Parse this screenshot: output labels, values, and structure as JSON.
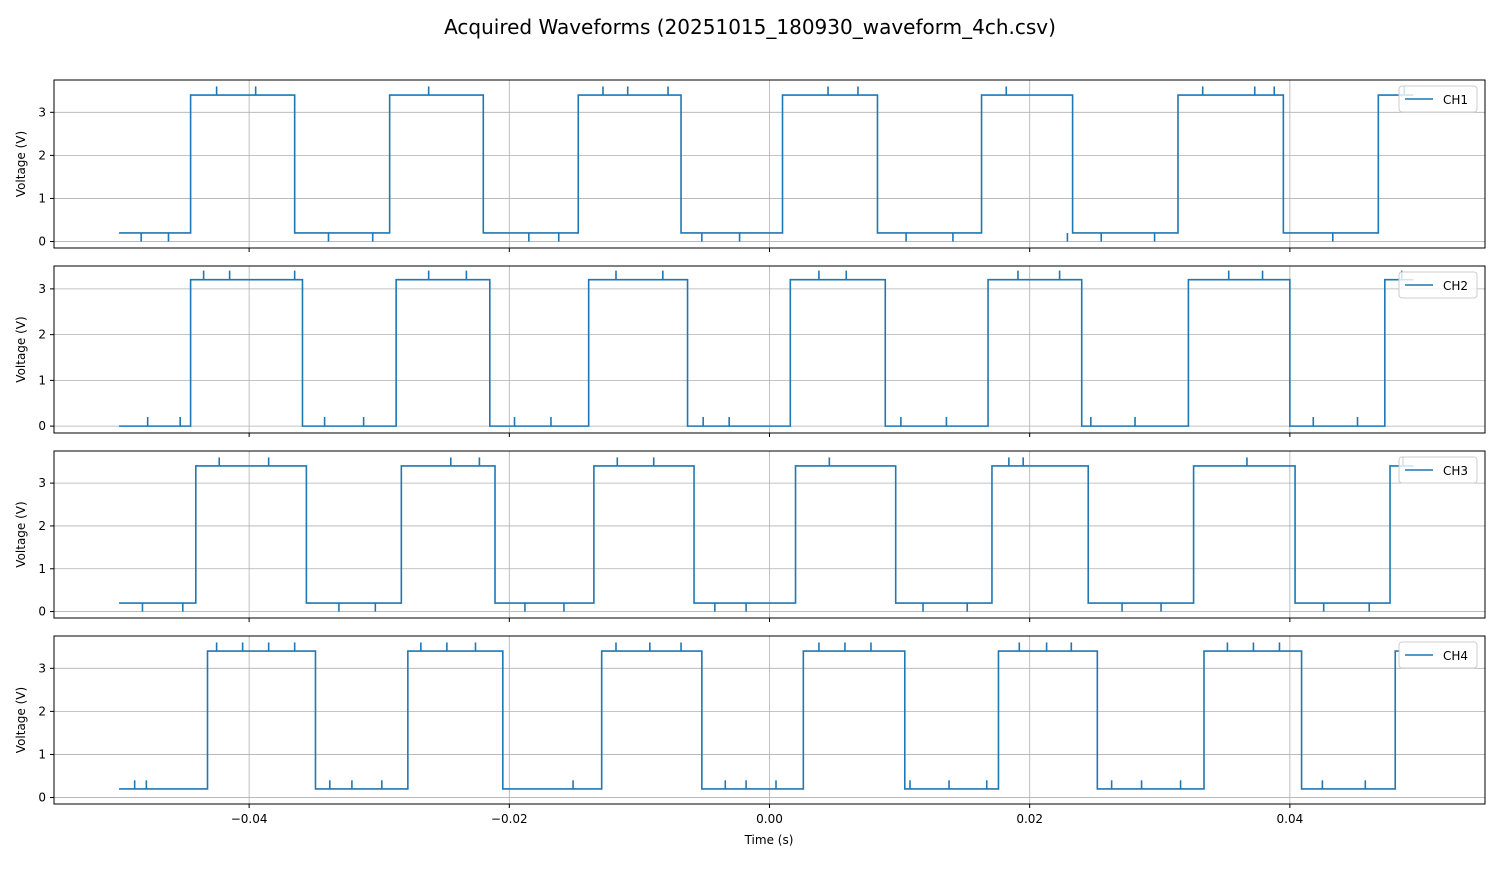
{
  "figure": {
    "title": "Acquired Waveforms (20251015_180930_waveform_4ch.csv)",
    "xlabel": "Time (s)"
  },
  "colors": {
    "series": "#1f77b4",
    "grid": "#b0b0b0",
    "axes": "#000000"
  },
  "chart_data": [
    {
      "type": "line",
      "name": "CH1",
      "ylabel": "Voltage (V)",
      "legend": {
        "entries": [
          "CH1"
        ],
        "placement": "top-right"
      },
      "grid": true,
      "xlim": [
        -0.055,
        0.055
      ],
      "ylim": [
        -0.15,
        3.75
      ],
      "xticks": [
        -0.04,
        -0.02,
        0.0,
        0.02,
        0.04
      ],
      "xtick_labels": [
        "−0.04",
        "−0.02",
        "0.00",
        "0.02",
        "0.04"
      ],
      "yticks": [
        0,
        1,
        2,
        3
      ],
      "low": 0.2,
      "high": 3.4,
      "high_glitch": 3.6,
      "low_glitch": 0.0,
      "x_start": -0.05,
      "x_end": 0.0495,
      "high_intervals": [
        [
          -0.0445,
          -0.0365
        ],
        [
          -0.0292,
          -0.022
        ],
        [
          -0.0147,
          -0.0068
        ],
        [
          0.001,
          0.0083
        ],
        [
          0.0163,
          0.0233
        ],
        [
          0.0314,
          0.0395
        ],
        [
          0.0468,
          0.0495
        ]
      ],
      "spikes_high": [
        -0.0425,
        -0.0395,
        -0.0262,
        -0.0128,
        -0.0078,
        -0.0109,
        0.0045,
        0.0068,
        0.0182,
        0.0333,
        0.0373,
        0.0388,
        0.0488
      ],
      "spikes_low": [
        -0.0483,
        -0.0462,
        -0.0339,
        -0.0305,
        -0.0185,
        -0.0162,
        -0.0052,
        -0.0023,
        0.0105,
        0.0141,
        0.0229,
        0.0255,
        0.0296,
        0.0433
      ]
    },
    {
      "type": "line",
      "name": "CH2",
      "ylabel": "Voltage (V)",
      "legend": {
        "entries": [
          "CH2"
        ],
        "placement": "top-right"
      },
      "grid": true,
      "xlim": [
        -0.055,
        0.055
      ],
      "ylim": [
        -0.15,
        3.5
      ],
      "xticks": [
        -0.04,
        -0.02,
        0.0,
        0.02,
        0.04
      ],
      "xtick_labels": [
        "−0.04",
        "−0.02",
        "0.00",
        "0.02",
        "0.04"
      ],
      "yticks": [
        0,
        1,
        2,
        3
      ],
      "low": 0.0,
      "high": 3.2,
      "high_glitch": 3.4,
      "low_glitch": 0.2,
      "x_start": -0.05,
      "x_end": 0.0495,
      "high_intervals": [
        [
          -0.0445,
          -0.0359
        ],
        [
          -0.0287,
          -0.0215
        ],
        [
          -0.0139,
          -0.0063
        ],
        [
          0.0016,
          0.0089
        ],
        [
          0.0168,
          0.024
        ],
        [
          0.0322,
          0.04
        ],
        [
          0.0473,
          0.0495
        ]
      ],
      "spikes_high": [
        -0.0435,
        -0.0415,
        -0.0365,
        -0.0262,
        -0.0233,
        -0.0118,
        -0.0082,
        0.0038,
        0.0059,
        0.0191,
        0.0223,
        0.0353,
        0.0379,
        0.0486
      ],
      "spikes_low": [
        -0.0478,
        -0.0453,
        -0.0342,
        -0.0312,
        -0.0196,
        -0.0168,
        -0.0051,
        -0.0031,
        0.0101,
        0.0136,
        0.0247,
        0.0281,
        0.0418,
        0.0452
      ]
    },
    {
      "type": "line",
      "name": "CH3",
      "ylabel": "Voltage (V)",
      "legend": {
        "entries": [
          "CH3"
        ],
        "placement": "top-right"
      },
      "grid": true,
      "xlim": [
        -0.055,
        0.055
      ],
      "ylim": [
        -0.15,
        3.75
      ],
      "xticks": [
        -0.04,
        -0.02,
        0.0,
        0.02,
        0.04
      ],
      "xtick_labels": [
        "−0.04",
        "−0.02",
        "0.00",
        "0.02",
        "0.04"
      ],
      "yticks": [
        0,
        1,
        2,
        3
      ],
      "low": 0.2,
      "high": 3.4,
      "high_glitch": 3.6,
      "low_glitch": 0.0,
      "x_start": -0.05,
      "x_end": 0.0495,
      "high_intervals": [
        [
          -0.0441,
          -0.0356
        ],
        [
          -0.0283,
          -0.0211
        ],
        [
          -0.0135,
          -0.0058
        ],
        [
          0.002,
          0.0097
        ],
        [
          0.0171,
          0.0245
        ],
        [
          0.0326,
          0.0404
        ],
        [
          0.0477,
          0.0495
        ]
      ],
      "spikes_high": [
        -0.0423,
        -0.0385,
        -0.0245,
        -0.0223,
        -0.0117,
        -0.0089,
        0.0046,
        0.0184,
        0.0195,
        0.0367,
        0.0487
      ],
      "spikes_low": [
        -0.0482,
        -0.0451,
        -0.0331,
        -0.0303,
        -0.0188,
        -0.0158,
        -0.0042,
        -0.0018,
        0.0118,
        0.0152,
        0.0271,
        0.0301,
        0.0426,
        0.0461
      ]
    },
    {
      "type": "line",
      "name": "CH4",
      "ylabel": "Voltage (V)",
      "legend": {
        "entries": [
          "CH4"
        ],
        "placement": "top-right"
      },
      "grid": true,
      "xlim": [
        -0.055,
        0.055
      ],
      "ylim": [
        -0.15,
        3.75
      ],
      "xticks": [
        -0.04,
        -0.02,
        0.0,
        0.02,
        0.04
      ],
      "xtick_labels": [
        "−0.04",
        "−0.02",
        "0.00",
        "0.02",
        "0.04"
      ],
      "yticks": [
        0,
        1,
        2,
        3
      ],
      "low": 0.2,
      "high": 3.4,
      "high_glitch": 3.6,
      "low_glitch": 0.4,
      "x_start": -0.05,
      "x_end": 0.0485,
      "high_intervals": [
        [
          -0.0432,
          -0.0349
        ],
        [
          -0.0278,
          -0.0205
        ],
        [
          -0.0129,
          -0.0052
        ],
        [
          0.0026,
          0.0104
        ],
        [
          0.0176,
          0.0252
        ],
        [
          0.0334,
          0.0409
        ],
        [
          0.0481,
          0.0485
        ]
      ],
      "spikes_high": [
        -0.0425,
        -0.0405,
        -0.0385,
        -0.0365,
        -0.0268,
        -0.0248,
        -0.0226,
        -0.0118,
        -0.0092,
        -0.0068,
        0.0038,
        0.0058,
        0.0078,
        0.0192,
        0.0213,
        0.0232,
        0.0352,
        0.0372,
        0.0392
      ],
      "spikes_low": [
        -0.0488,
        -0.0479,
        -0.0338,
        -0.0321,
        -0.0298,
        -0.0151,
        -0.0034,
        -0.0018,
        0.0005,
        0.0108,
        0.0138,
        0.0167,
        0.0263,
        0.0286,
        0.0316,
        0.0425,
        0.0458
      ]
    }
  ]
}
